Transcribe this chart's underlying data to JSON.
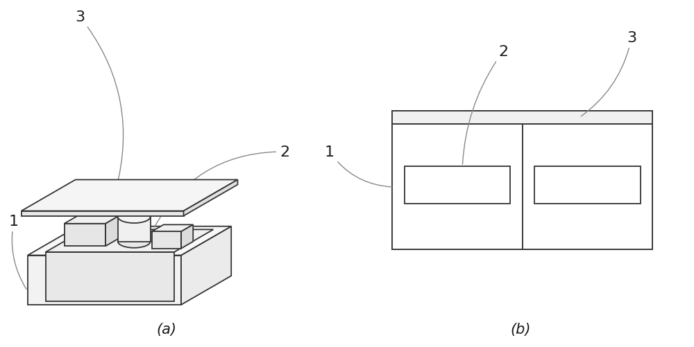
{
  "bg_color": "#ffffff",
  "line_color": "#333333",
  "label_color": "#1a1a1a",
  "fig_width": 10.0,
  "fig_height": 5.02,
  "label_a": "(a)",
  "label_b": "(b)",
  "font_size_label": 15,
  "font_size_number": 16,
  "lw": 1.3
}
